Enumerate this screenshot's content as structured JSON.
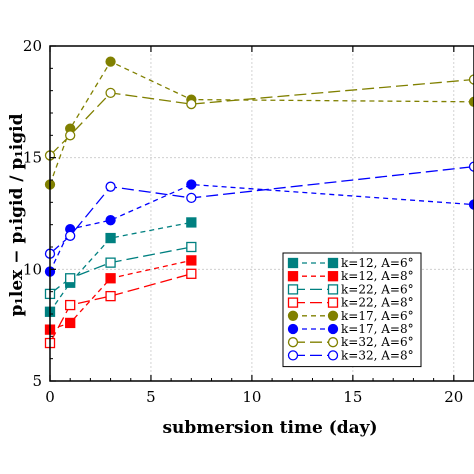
{
  "chart_data": {
    "type": "line",
    "title": "",
    "xlabel": "submersion time (day)",
    "ylabel": "p₁lex − p₁igid / p₁igid",
    "xlim": [
      0,
      21
    ],
    "ylim": [
      5,
      20
    ],
    "xticks": [
      0,
      5,
      10,
      15,
      20
    ],
    "yticks": [
      5,
      10,
      15,
      20
    ],
    "grid": true,
    "legend_position": "center-right",
    "series": [
      {
        "name": "k=12, A=6°",
        "color": "#008080",
        "marker": "square",
        "filled": true,
        "dash": "short",
        "x": [
          0,
          1,
          3,
          7
        ],
        "y": [
          8.1,
          9.4,
          11.4,
          12.1
        ]
      },
      {
        "name": "k=12, A=8°",
        "color": "#ff0000",
        "marker": "square",
        "filled": true,
        "dash": "short",
        "x": [
          0,
          1,
          3,
          7
        ],
        "y": [
          7.3,
          7.6,
          9.6,
          10.4
        ]
      },
      {
        "name": "k=22, A=6°",
        "color": "#008080",
        "marker": "square",
        "filled": false,
        "dash": "long",
        "x": [
          0,
          1,
          3,
          7
        ],
        "y": [
          8.9,
          9.6,
          10.3,
          11.0
        ]
      },
      {
        "name": "k=22, A=8°",
        "color": "#ff0000",
        "marker": "square",
        "filled": false,
        "dash": "long",
        "x": [
          0,
          1,
          3,
          7
        ],
        "y": [
          6.7,
          8.4,
          8.8,
          9.8
        ]
      },
      {
        "name": "k=17, A=6°",
        "color": "#808000",
        "marker": "circle",
        "filled": true,
        "dash": "short",
        "x": [
          0,
          1,
          3,
          7,
          21
        ],
        "y": [
          13.8,
          16.3,
          19.3,
          17.6,
          17.5
        ]
      },
      {
        "name": "k=17, A=8°",
        "color": "#0000ff",
        "marker": "circle",
        "filled": true,
        "dash": "short",
        "x": [
          0,
          1,
          3,
          7,
          21
        ],
        "y": [
          9.9,
          11.8,
          12.2,
          13.8,
          12.9
        ]
      },
      {
        "name": "k=32, A=6°",
        "color": "#808000",
        "marker": "circle",
        "filled": false,
        "dash": "long",
        "x": [
          0,
          1,
          3,
          7,
          21
        ],
        "y": [
          15.1,
          16.0,
          17.9,
          17.4,
          18.5
        ]
      },
      {
        "name": "k=32, A=8°",
        "color": "#0000ff",
        "marker": "circle",
        "filled": false,
        "dash": "long",
        "x": [
          0,
          1,
          3,
          7,
          21
        ],
        "y": [
          10.7,
          11.5,
          13.7,
          13.2,
          14.6
        ]
      }
    ]
  }
}
